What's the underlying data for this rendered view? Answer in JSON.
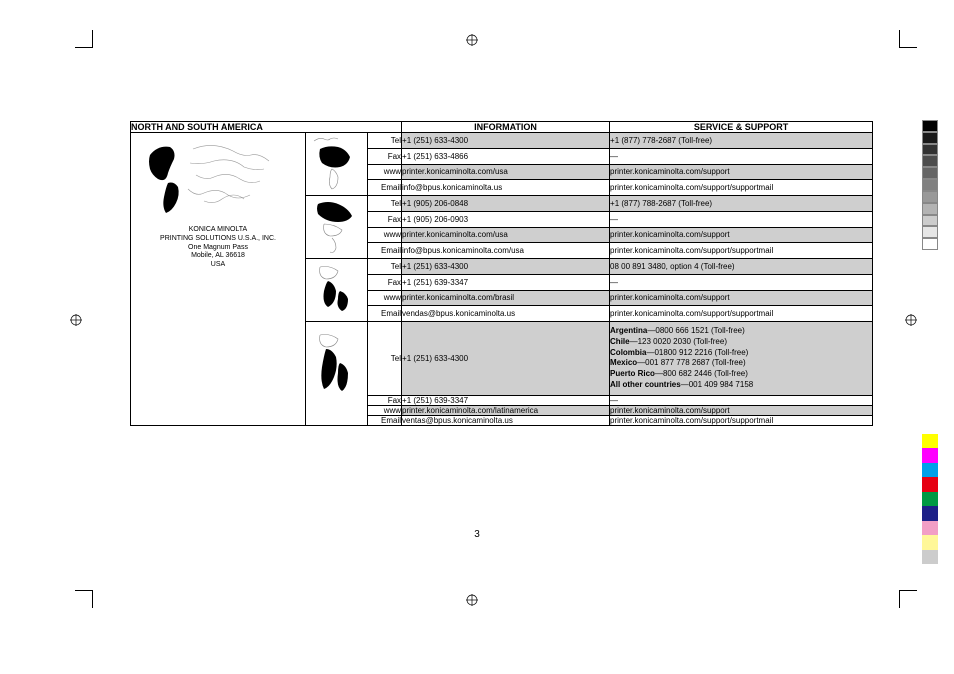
{
  "page_number": "3",
  "colors": {
    "shade_bg": "#cfcfcf",
    "white_bg": "#ffffff",
    "border": "#000000",
    "text": "#000000"
  },
  "header": {
    "region_title": "NORTH AND SOUTH AMERICA",
    "col_info": "INFORMATION",
    "col_service": "SERVICE & SUPPORT"
  },
  "company": {
    "line1": "KONICA MINOLTA",
    "line2": "PRINTING SOLUTIONS U.S.A., INC.",
    "line3": "One Magnum Pass",
    "line4": "Mobile, AL 36618",
    "line5": "USA"
  },
  "row_labels": {
    "tel": "Tel",
    "fax": "Fax",
    "www": "www",
    "email": "Email"
  },
  "regions": [
    {
      "tel_info": "+1 (251) 633-4300",
      "tel_service": "+1 (877) 778-2687 (Toll-free)",
      "fax_info": "+1 (251) 633-4866",
      "fax_service": "—",
      "www_info": "printer.konicaminolta.com/usa",
      "www_service": "printer.konicaminolta.com/support",
      "email_info": "info@bpus.konicaminolta.us",
      "email_service": "printer.konicaminolta.com/support/supportmail"
    },
    {
      "tel_info": "+1 (905) 206-0848",
      "tel_service": "+1 (877) 788-2687 (Toll-free)",
      "fax_info": "+1 (905) 206-0903",
      "fax_service": "—",
      "www_info": "printer.konicaminolta.com/usa",
      "www_service": "printer.konicaminolta.com/support",
      "email_info": "info@bpus.konicaminolta.com/usa",
      "email_service": "printer.konicaminolta.com/support/supportmail"
    },
    {
      "tel_info": "+1 (251) 633-4300",
      "tel_service": "08 00 891 3480, option 4 (Toll-free)",
      "fax_info": "+1 (251) 639-3347",
      "fax_service": "—",
      "www_info": "printer.konicaminolta.com/brasil",
      "www_service": "printer.konicaminolta.com/support",
      "email_info": "vendas@bpus.konicaminolta.us",
      "email_service": "printer.konicaminolta.com/support/supportmail"
    },
    {
      "tel_info": "+1 (251) 633-4300",
      "tel_service_lines": [
        {
          "b": "Argentina",
          "t": "—0800 666 1521 (Toll-free)"
        },
        {
          "b": "Chile",
          "t": "—123 0020 2030 (Toll-free)"
        },
        {
          "b": "Colombia",
          "t": "—01800 912 2216 (Toll-free)"
        },
        {
          "b": "Mexico",
          "t": "—001 877 778 2687 (Toll-free)"
        },
        {
          "b": "Puerto Rico",
          "t": "—800 682 2446 (Toll-free)"
        },
        {
          "b": "All other countries",
          "t": "—001 409 984 7158"
        }
      ],
      "fax_info": "+1 (251) 639-3347",
      "fax_service": "—",
      "www_info": "printer.konicaminolta.com/latinamerica",
      "www_service": "printer.konicaminolta.com/support",
      "email_info": "ventas@bpus.konicaminolta.us",
      "email_service": "printer.konicaminolta.com/support/supportmail"
    }
  ],
  "gray_strip": [
    "#000000",
    "#1a1a1a",
    "#333333",
    "#4d4d4d",
    "#666666",
    "#808080",
    "#999999",
    "#b3b3b3",
    "#cccccc",
    "#e6e6e6",
    "#ffffff"
  ],
  "color_strip": [
    "#ffff00",
    "#ff00ff",
    "#00a0e9",
    "#e60012",
    "#009944",
    "#1d2088",
    "#f29ec5",
    "#fff799",
    "#cccccc"
  ]
}
